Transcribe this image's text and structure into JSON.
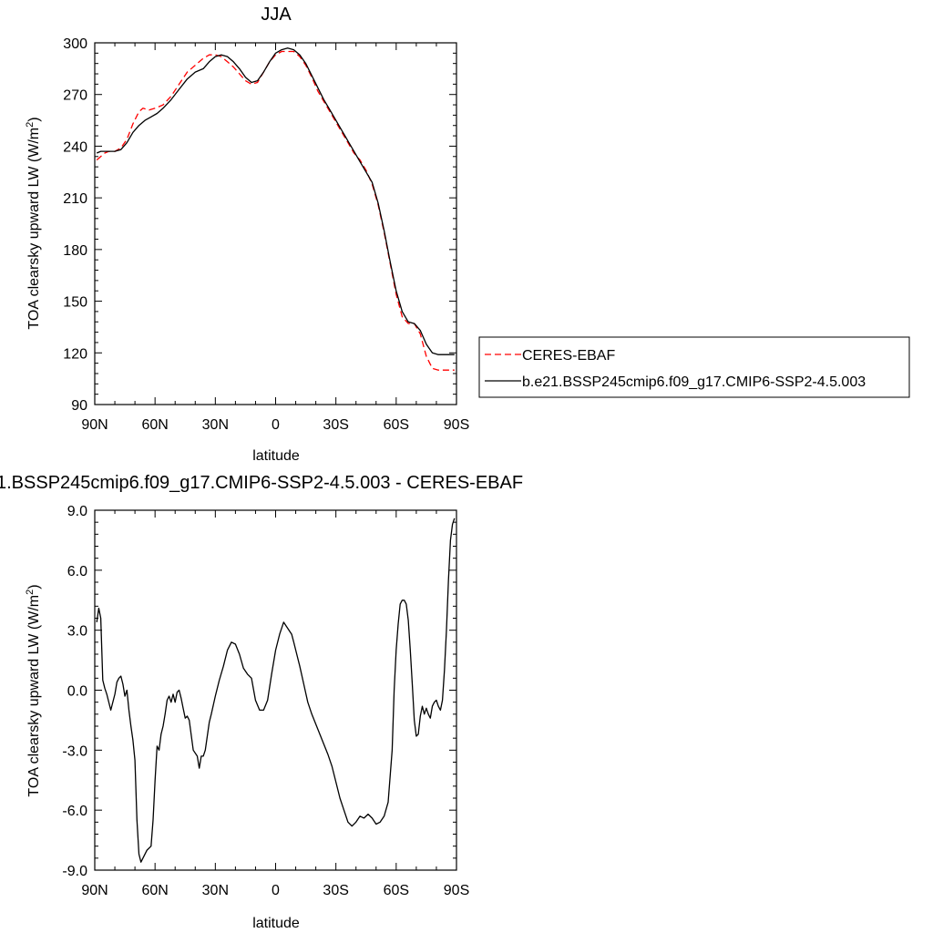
{
  "chart_data": [
    {
      "type": "line",
      "title": "JJA",
      "xlabel": "latitude",
      "ylabel": "TOA clearsky upward LW (W/m",
      "ylabel_sup": "2",
      "ylabel_close": ")",
      "xlim": [
        90,
        -90
      ],
      "ylim": [
        90,
        300
      ],
      "xticks": [
        {
          "v": 90,
          "label": "90N"
        },
        {
          "v": 60,
          "label": "60N"
        },
        {
          "v": 30,
          "label": "30N"
        },
        {
          "v": 0,
          "label": "0"
        },
        {
          "v": -30,
          "label": "30S"
        },
        {
          "v": -60,
          "label": "60S"
        },
        {
          "v": -90,
          "label": "90S"
        }
      ],
      "yticks": [
        {
          "v": 90,
          "label": "90"
        },
        {
          "v": 120,
          "label": "120"
        },
        {
          "v": 150,
          "label": "150"
        },
        {
          "v": 180,
          "label": "180"
        },
        {
          "v": 210,
          "label": "210"
        },
        {
          "v": 240,
          "label": "240"
        },
        {
          "v": 270,
          "label": "270"
        },
        {
          "v": 300,
          "label": "300"
        }
      ],
      "legend_position": "right",
      "series": [
        {
          "name": "CERES-EBAF",
          "color": "#ff0000",
          "dash": "dashed",
          "x": [
            89,
            87,
            85,
            83,
            80,
            77,
            74,
            71,
            68,
            66,
            63,
            60,
            56,
            52,
            48,
            44,
            40,
            36,
            33,
            30,
            27,
            24,
            21,
            18,
            15,
            12,
            9,
            6,
            3,
            0,
            -3,
            -6,
            -9,
            -12,
            -15,
            -18,
            -21,
            -24,
            -27,
            -30,
            -33,
            -36,
            -39,
            -42,
            -45,
            -48,
            -51,
            -54,
            -57,
            -60,
            -63,
            -66,
            -69,
            -72,
            -75,
            -78,
            -81,
            -84,
            -86,
            -88,
            -89
          ],
          "y": [
            232,
            234,
            236,
            237,
            237,
            239,
            244,
            253,
            260,
            262,
            261,
            262,
            264,
            269,
            276,
            283,
            287,
            291,
            293,
            293,
            292,
            289,
            286,
            282,
            278,
            276,
            277,
            283,
            289,
            293,
            295,
            295,
            295,
            292,
            287,
            280,
            272,
            266,
            260,
            254,
            248,
            242,
            236,
            232,
            226,
            218,
            206,
            190,
            172,
            154,
            141,
            137,
            137,
            131,
            118,
            111,
            110,
            110,
            110,
            110,
            110
          ],
          "y_note": ""
        },
        {
          "name": "b.e21.BSSP245cmip6.f09_g17.CMIP6-SSP2-4.5.003",
          "color": "#000000",
          "dash": "solid",
          "x": [
            89,
            87,
            85,
            83,
            80,
            77,
            74,
            71,
            68,
            65,
            62,
            59,
            56,
            52,
            48,
            44,
            40,
            36,
            33,
            30,
            27,
            24,
            21,
            18,
            15,
            12,
            9,
            6,
            3,
            0,
            -3,
            -6,
            -9,
            -12,
            -15,
            -18,
            -21,
            -24,
            -27,
            -30,
            -33,
            -36,
            -39,
            -42,
            -45,
            -48,
            -51,
            -54,
            -57,
            -60,
            -63,
            -66,
            -69,
            -72,
            -75,
            -78,
            -81,
            -84,
            -86,
            -88,
            -89
          ],
          "y": [
            236,
            237,
            237,
            237,
            237,
            238,
            242,
            248,
            252,
            255,
            257,
            259,
            262,
            267,
            273,
            279,
            283,
            285,
            289,
            292,
            293,
            292,
            289,
            285,
            280,
            277,
            278,
            283,
            289,
            294,
            296,
            297,
            296,
            293,
            288,
            281,
            274,
            267,
            261,
            255,
            249,
            243,
            237,
            231,
            225,
            219,
            207,
            191,
            173,
            156,
            144,
            138,
            137,
            133,
            125,
            120,
            119,
            119,
            119,
            119,
            119
          ]
        }
      ]
    },
    {
      "type": "line",
      "title": "1.BSSP245cmip6.f09_g17.CMIP6-SSP2-4.5.003 - CERES-EBAF",
      "xlabel": "latitude",
      "ylabel": "TOA clearsky upward LW (W/m",
      "ylabel_sup": "2",
      "ylabel_close": ")",
      "xlim": [
        90,
        -90
      ],
      "ylim": [
        -9,
        9
      ],
      "xticks": [
        {
          "v": 90,
          "label": "90N"
        },
        {
          "v": 60,
          "label": "60N"
        },
        {
          "v": 30,
          "label": "30N"
        },
        {
          "v": 0,
          "label": "0"
        },
        {
          "v": -30,
          "label": "30S"
        },
        {
          "v": -60,
          "label": "60S"
        },
        {
          "v": -90,
          "label": "90S"
        }
      ],
      "yticks": [
        {
          "v": -9,
          "label": "-9.0"
        },
        {
          "v": -6,
          "label": "-6.0"
        },
        {
          "v": -3,
          "label": "-3.0"
        },
        {
          "v": 0,
          "label": "0.0"
        },
        {
          "v": 3,
          "label": "3.0"
        },
        {
          "v": 6,
          "label": "6.0"
        },
        {
          "v": 9,
          "label": "9.0"
        }
      ],
      "series": [
        {
          "color": "#000000",
          "dash": "solid",
          "x": [
            89,
            88,
            87,
            86,
            85,
            84,
            82,
            80,
            79,
            78,
            77,
            76,
            75,
            74,
            73,
            72,
            71,
            70,
            69,
            68,
            67,
            66,
            64,
            62,
            61,
            60,
            59,
            58,
            57,
            56,
            55,
            54,
            53,
            52,
            51,
            50,
            49,
            48,
            47,
            46,
            45,
            44,
            43,
            41,
            39,
            38,
            37,
            36,
            35,
            33,
            32,
            30,
            28,
            26,
            24,
            22,
            20,
            18,
            16,
            14,
            12,
            10,
            8,
            6,
            4,
            2,
            0,
            -2,
            -4,
            -6,
            -8,
            -9,
            -10,
            -12,
            -14,
            -16,
            -18,
            -20,
            -22,
            -24,
            -26,
            -28,
            -30,
            -32,
            -34,
            -36,
            -38,
            -40,
            -42,
            -44,
            -46,
            -48,
            -50,
            -52,
            -54,
            -56,
            -58,
            -59,
            -60,
            -61,
            -62,
            -63,
            -64,
            -65,
            -66,
            -67,
            -68,
            -69,
            -70,
            -71,
            -72,
            -73,
            -74,
            -75,
            -76,
            -77,
            -78,
            -79,
            -80,
            -81,
            -82,
            -83,
            -84,
            -85,
            -86,
            -87,
            -88,
            -89
          ],
          "y": [
            3.4,
            4.1,
            3.6,
            0.5,
            0.1,
            -0.2,
            -1.0,
            -0.2,
            0.4,
            0.6,
            0.7,
            0.3,
            -0.3,
            0.0,
            -1.0,
            -1.8,
            -2.5,
            -3.5,
            -6.5,
            -8.2,
            -8.6,
            -8.4,
            -8.0,
            -7.8,
            -6.5,
            -4.5,
            -2.8,
            -3.0,
            -2.2,
            -1.8,
            -1.2,
            -0.5,
            -0.3,
            -0.6,
            -0.2,
            -0.6,
            -0.1,
            0.0,
            -0.4,
            -0.9,
            -1.4,
            -1.3,
            -1.5,
            -3.0,
            -3.3,
            -3.9,
            -3.3,
            -3.3,
            -3.0,
            -1.6,
            -1.2,
            -0.3,
            0.5,
            1.2,
            2.0,
            2.4,
            2.3,
            1.8,
            1.1,
            0.8,
            0.6,
            -0.5,
            -1.0,
            -1.0,
            -0.5,
            0.8,
            2.0,
            2.8,
            3.4,
            3.1,
            2.8,
            2.4,
            2.0,
            1.2,
            0.3,
            -0.6,
            -1.2,
            -1.7,
            -2.2,
            -2.7,
            -3.2,
            -3.8,
            -4.6,
            -5.4,
            -6.0,
            -6.6,
            -6.8,
            -6.6,
            -6.3,
            -6.4,
            -6.2,
            -6.4,
            -6.7,
            -6.6,
            -6.3,
            -5.6,
            -3.0,
            0.0,
            2.0,
            3.3,
            4.3,
            4.5,
            4.5,
            4.3,
            3.5,
            2.0,
            0.3,
            -1.5,
            -2.3,
            -2.2,
            -1.3,
            -0.8,
            -1.2,
            -0.9,
            -1.2,
            -1.4,
            -0.8,
            -0.6,
            -0.5,
            -0.8,
            -1.0,
            -0.5,
            1.0,
            3.0,
            5.5,
            7.5,
            8.3,
            8.6
          ]
        }
      ]
    }
  ]
}
